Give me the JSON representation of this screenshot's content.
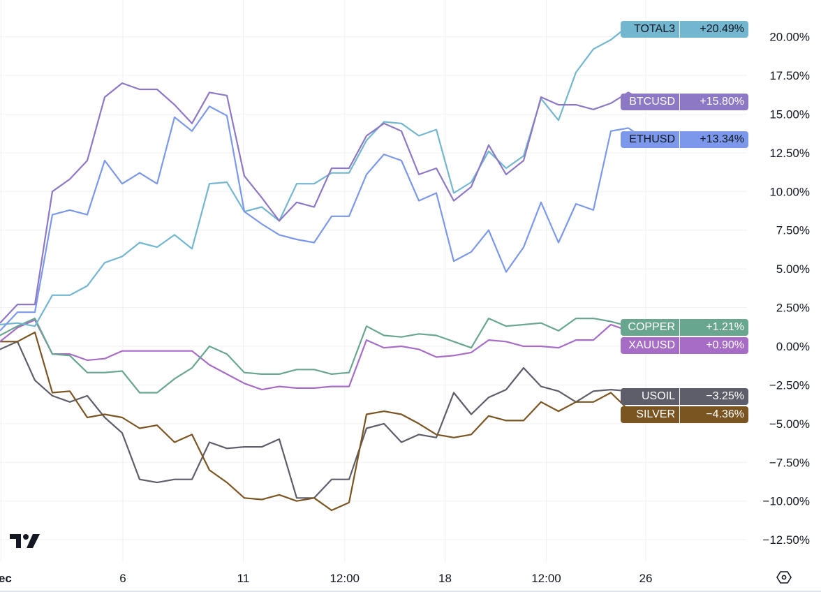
{
  "chart_data": {
    "type": "line",
    "y_unit": "%",
    "ylim": [
      -14,
      21.5
    ],
    "y_ticks": [
      "20.00%",
      "17.50%",
      "15.00%",
      "12.50%",
      "10.00%",
      "7.50%",
      "5.00%",
      "2.50%",
      "0.00%",
      "−2.50%",
      "−5.00%",
      "−7.50%",
      "−10.00%",
      "−12.50%"
    ],
    "y_tick_values": [
      20,
      17.5,
      15,
      12.5,
      10,
      7.5,
      5,
      2.5,
      0,
      -2.5,
      -5,
      -7.5,
      -10,
      -12.5
    ],
    "x_ticks": [
      {
        "label": "Dec",
        "at": 0.05,
        "bold": true
      },
      {
        "label": "6",
        "at": 7.04
      },
      {
        "label": "11",
        "at": 13.94
      },
      {
        "label": "12:00",
        "at": 19.75
      },
      {
        "label": "18",
        "at": 25.5
      },
      {
        "label": "12:00",
        "at": 31.3
      },
      {
        "label": "26",
        "at": 37
      }
    ],
    "grid": true,
    "series": [
      {
        "name": "TOTAL3",
        "last": "+20.49%",
        "color": "#73b6cf",
        "text": "#131722",
        "values": [
          1.4,
          1.5,
          1.3,
          3.3,
          3.3,
          3.9,
          5.4,
          5.8,
          6.7,
          6.4,
          7.2,
          6.3,
          10.5,
          10.6,
          8.7,
          9.0,
          8.1,
          10.5,
          10.5,
          11.2,
          11.2,
          13.3,
          14.5,
          14.4,
          13.6,
          14.0,
          9.9,
          10.6,
          12.6,
          11.5,
          12.3,
          16.0,
          14.6,
          17.7,
          19.2,
          19.8,
          20.7,
          20.49
        ]
      },
      {
        "name": "BTCUSD",
        "last": "+15.80%",
        "color": "#8d78c6",
        "text": "#ffffff",
        "values": [
          1.5,
          2.7,
          2.7,
          10.0,
          10.8,
          12.0,
          16.1,
          17.0,
          16.6,
          16.6,
          15.6,
          14.4,
          16.4,
          16.2,
          11.0,
          9.6,
          8.1,
          9.3,
          9.0,
          11.5,
          11.5,
          13.6,
          14.4,
          13.9,
          11.1,
          11.5,
          9.4,
          10.3,
          13.0,
          11.1,
          12.0,
          16.1,
          15.6,
          15.6,
          15.3,
          15.7,
          16.4,
          15.8
        ]
      },
      {
        "name": "ETHUSD",
        "last": "+13.34%",
        "color": "#7b98ea",
        "text": "#131722",
        "values": [
          1.0,
          2.2,
          2.2,
          8.5,
          8.8,
          8.5,
          12.0,
          10.5,
          11.2,
          10.5,
          14.8,
          13.9,
          15.5,
          14.9,
          8.7,
          7.9,
          7.2,
          6.9,
          6.7,
          8.4,
          8.4,
          11.1,
          12.4,
          12.0,
          9.4,
          9.9,
          5.5,
          6.1,
          7.5,
          4.8,
          6.4,
          9.3,
          6.7,
          9.2,
          8.8,
          13.9,
          14.1,
          13.34
        ]
      },
      {
        "name": "COPPER",
        "last": "+1.21%",
        "color": "#69a68f",
        "text": "#ffffff",
        "values": [
          0.7,
          1.3,
          1.8,
          -0.5,
          -0.6,
          -1.7,
          -1.7,
          -1.6,
          -3.0,
          -3.0,
          -2.1,
          -1.4,
          0.0,
          -0.5,
          -1.7,
          -1.8,
          -1.8,
          -1.5,
          -1.5,
          -1.8,
          -1.7,
          1.3,
          0.7,
          0.6,
          0.8,
          0.7,
          0.3,
          -0.1,
          1.8,
          1.3,
          1.4,
          1.5,
          1.0,
          1.8,
          1.8,
          1.6,
          1.3,
          1.21
        ]
      },
      {
        "name": "XAUUSD",
        "last": "+0.90%",
        "color": "#a66cc6",
        "text": "#ffffff",
        "values": [
          0.3,
          1.2,
          1.7,
          -0.5,
          -0.5,
          -0.9,
          -0.8,
          -0.3,
          -0.3,
          -0.3,
          -0.3,
          -0.3,
          -1.2,
          -1.8,
          -2.4,
          -2.8,
          -2.6,
          -2.7,
          -2.7,
          -2.6,
          -2.6,
          0.4,
          -0.1,
          0.0,
          -0.2,
          -0.7,
          -0.6,
          -0.4,
          0.4,
          0.3,
          0.0,
          0.0,
          -0.1,
          0.4,
          0.4,
          1.4,
          1.0,
          0.9
        ]
      },
      {
        "name": "USOIL",
        "last": "−3.25%",
        "color": "#5d5e69",
        "text": "#ffffff",
        "values": [
          -0.2,
          0.3,
          -2.2,
          -3.2,
          -3.6,
          -3.2,
          -4.6,
          -5.6,
          -8.6,
          -8.8,
          -8.6,
          -8.6,
          -6.2,
          -6.6,
          -6.5,
          -6.5,
          -6.0,
          -9.8,
          -9.8,
          -8.6,
          -8.6,
          -5.3,
          -5.0,
          -6.2,
          -5.7,
          -5.9,
          -3.0,
          -4.4,
          -3.3,
          -2.8,
          -1.4,
          -2.6,
          -2.9,
          -3.6,
          -2.9,
          -2.8,
          -2.9,
          -3.25
        ]
      },
      {
        "name": "SILVER",
        "last": "−4.36%",
        "color": "#7a5522",
        "text": "#ffffff",
        "values": [
          0.3,
          0.3,
          0.9,
          -3.0,
          -2.9,
          -4.6,
          -4.4,
          -4.6,
          -5.3,
          -5.1,
          -6.2,
          -5.7,
          -8.0,
          -8.8,
          -9.8,
          -9.9,
          -9.6,
          -10.0,
          -9.8,
          -10.6,
          -10.1,
          -4.4,
          -4.2,
          -4.4,
          -5.0,
          -5.7,
          -5.9,
          -5.7,
          -4.5,
          -4.8,
          -4.8,
          -3.6,
          -4.2,
          -3.6,
          -3.6,
          -3.0,
          -4.1,
          -4.36
        ]
      }
    ]
  },
  "logo": "TV",
  "settings_icon": "hexagon-settings-icon"
}
